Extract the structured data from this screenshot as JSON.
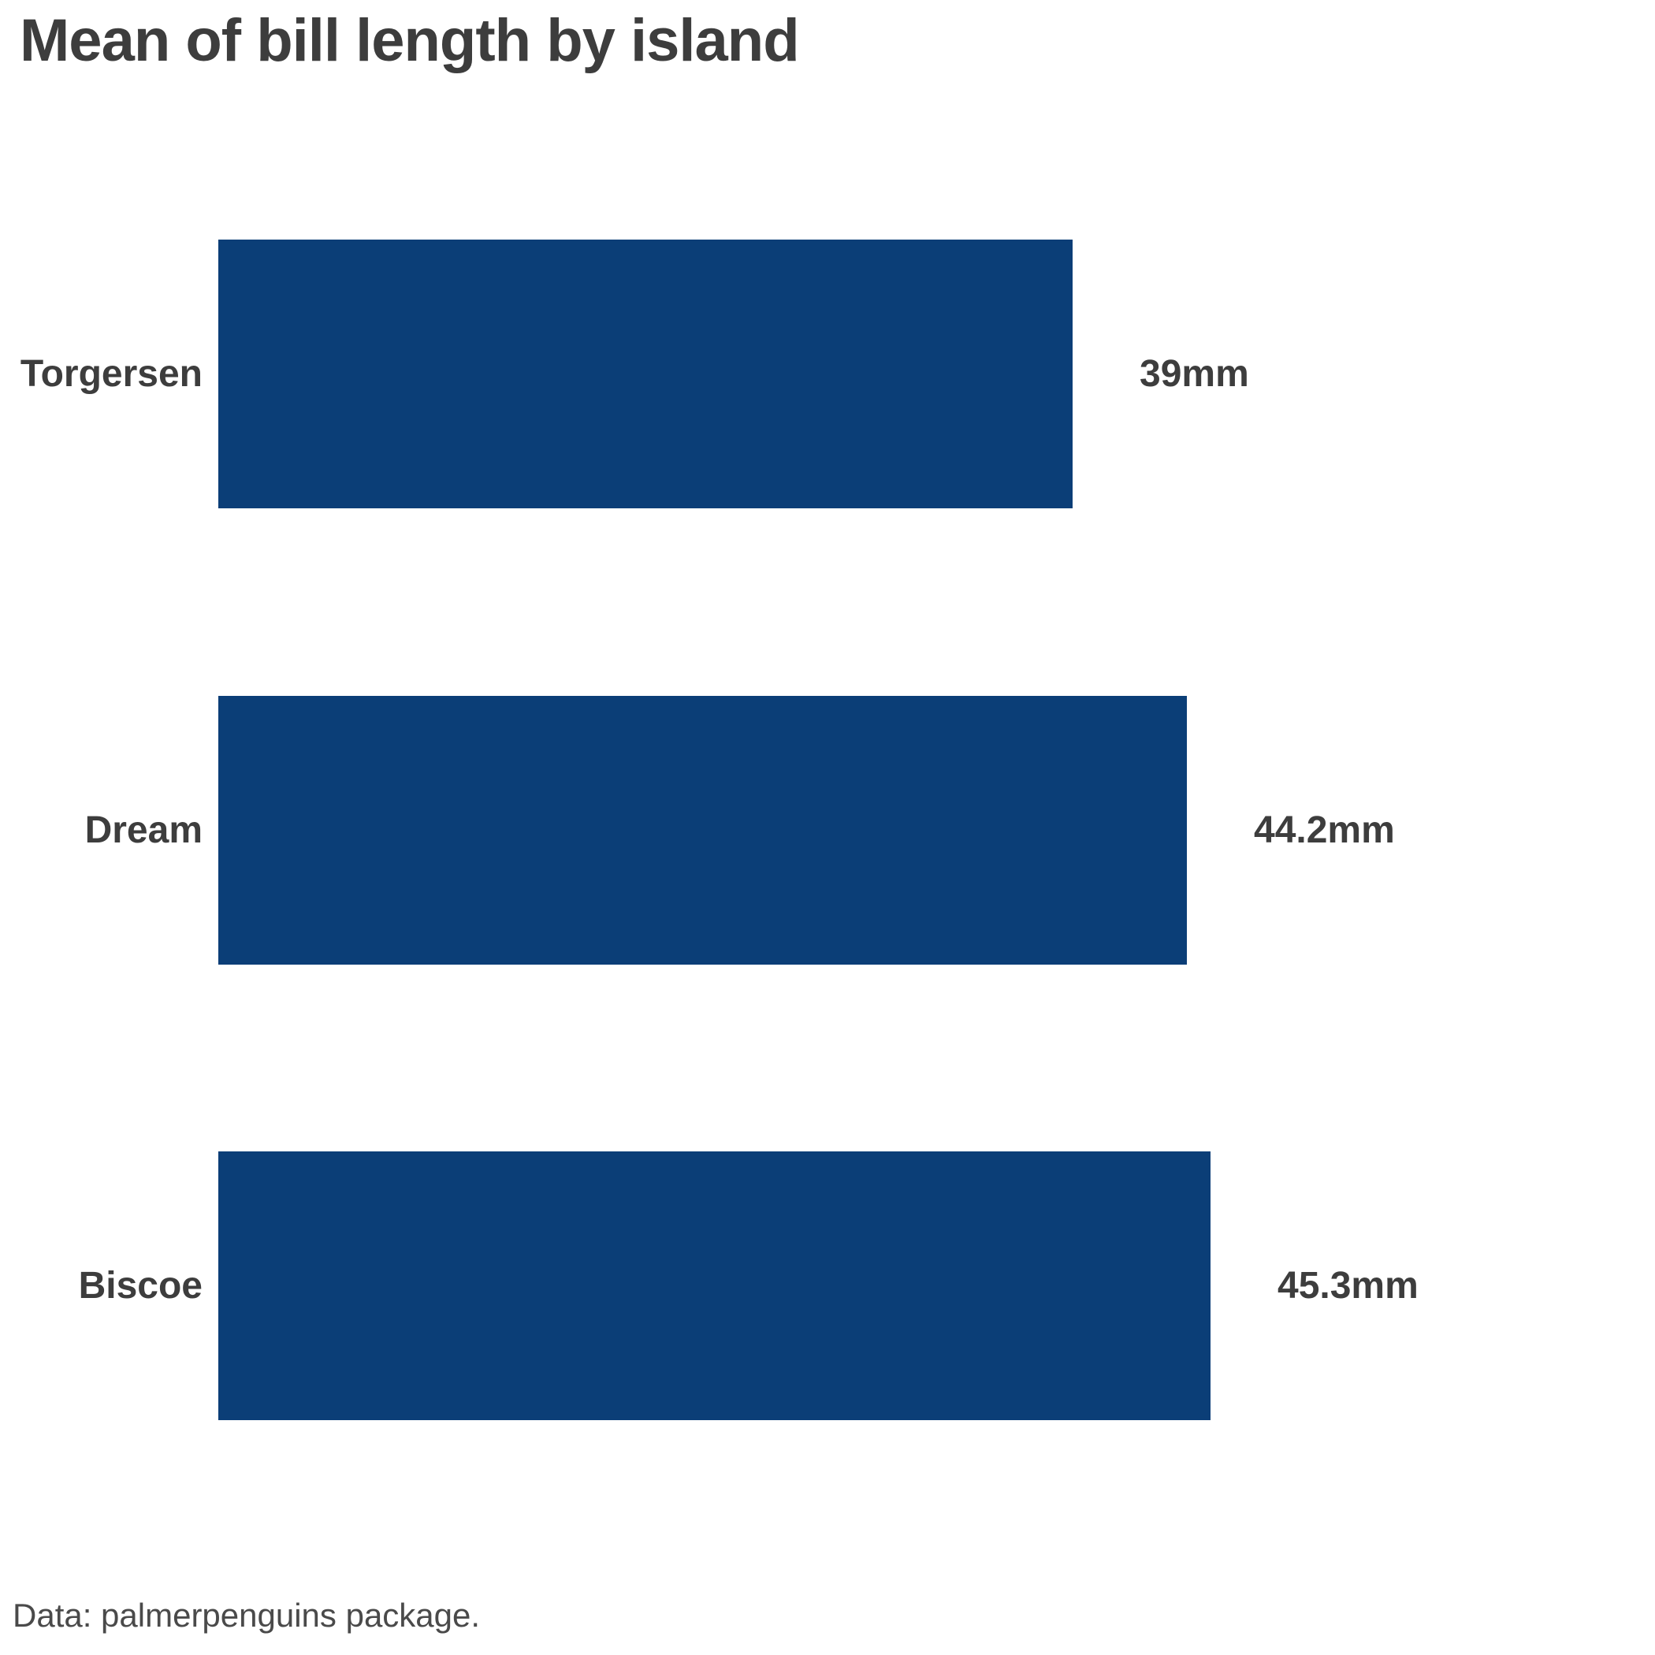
{
  "title": "Mean of bill length by island",
  "footer": "Data: palmerpenguins package.",
  "colors": {
    "bar": "#0b3e77",
    "label_text": "#3d3d3d",
    "footer_text": "#4a4a4a",
    "background": "#ffffff"
  },
  "chart_data": {
    "type": "bar",
    "orientation": "horizontal",
    "title": "Mean of bill length by island",
    "categories": [
      "Torgersen",
      "Dream",
      "Biscoe"
    ],
    "values": [
      39,
      44.2,
      45.3
    ],
    "value_labels": [
      "39mm",
      "44.2mm",
      "45.3mm"
    ],
    "unit": "mm",
    "xlabel": "",
    "ylabel": "",
    "xlim": [
      0,
      45.3
    ],
    "grid": false,
    "legend": false,
    "bar_label_position": "right-of-bar",
    "source_note": "Data: palmerpenguins package."
  }
}
